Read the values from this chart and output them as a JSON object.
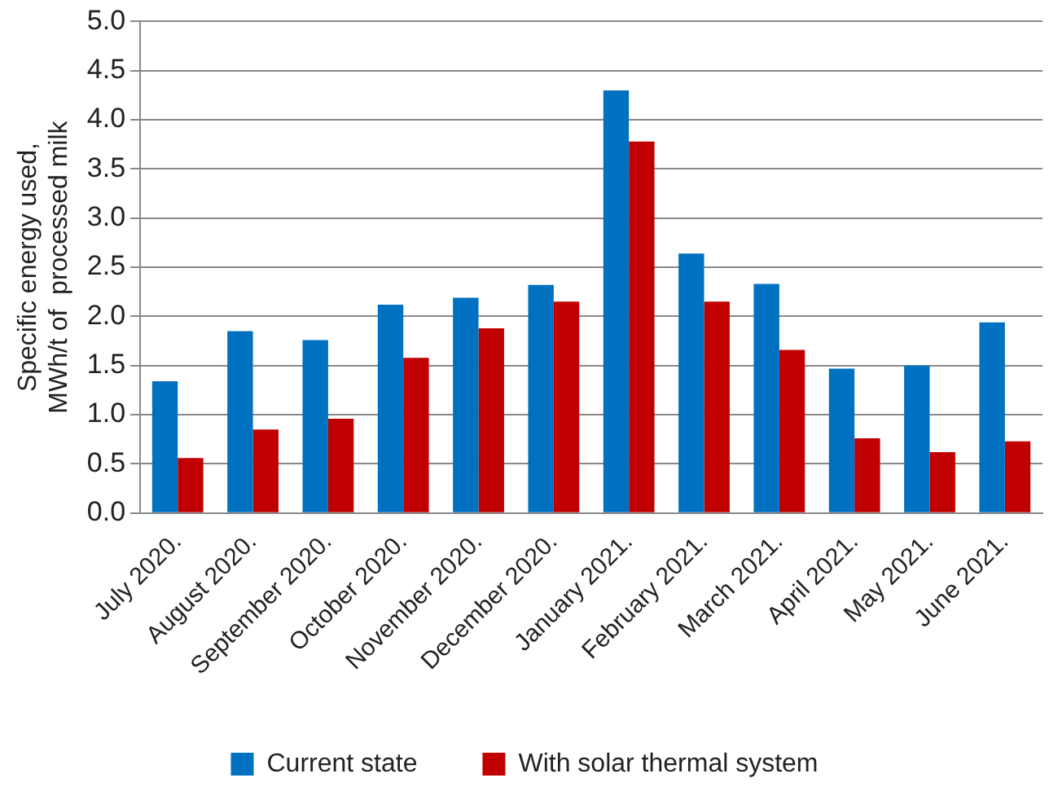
{
  "chart_data": {
    "type": "bar",
    "ylabel": "Specific energy used,\nMWh/t of  processed milk",
    "categories": [
      "July 2020.",
      "August 2020.",
      "September 2020.",
      "October 2020.",
      "November 2020.",
      "December 2020.",
      "January 2021.",
      "February 2021.",
      "March 2021.",
      "April 2021.",
      "May 2021.",
      "June 2021."
    ],
    "series": [
      {
        "name": "Current state",
        "color": "#0070c0",
        "values": [
          1.34,
          1.85,
          1.76,
          2.12,
          2.19,
          2.32,
          4.3,
          2.64,
          2.33,
          1.47,
          1.5,
          1.94
        ]
      },
      {
        "name": "With solar thermal system",
        "color": "#c00000",
        "values": [
          0.56,
          0.85,
          0.96,
          1.58,
          1.88,
          2.15,
          3.78,
          2.15,
          1.66,
          0.76,
          0.62,
          0.73
        ]
      }
    ],
    "ylim": [
      0,
      5
    ],
    "yticks": [
      {
        "value": 0,
        "label": "0.0"
      },
      {
        "value": 0.5,
        "label": "0.5"
      },
      {
        "value": 1,
        "label": "1.0"
      },
      {
        "value": 1.5,
        "label": "1.5"
      },
      {
        "value": 2,
        "label": "2.0"
      },
      {
        "value": 2.5,
        "label": "2.5"
      },
      {
        "value": 3,
        "label": "3.0"
      },
      {
        "value": 3.5,
        "label": "3.5"
      },
      {
        "value": 4,
        "label": "4.0"
      },
      {
        "value": 4.5,
        "label": "4.5"
      },
      {
        "value": 5,
        "label": "5.0"
      }
    ],
    "grid": "y",
    "legend": "bottom"
  }
}
